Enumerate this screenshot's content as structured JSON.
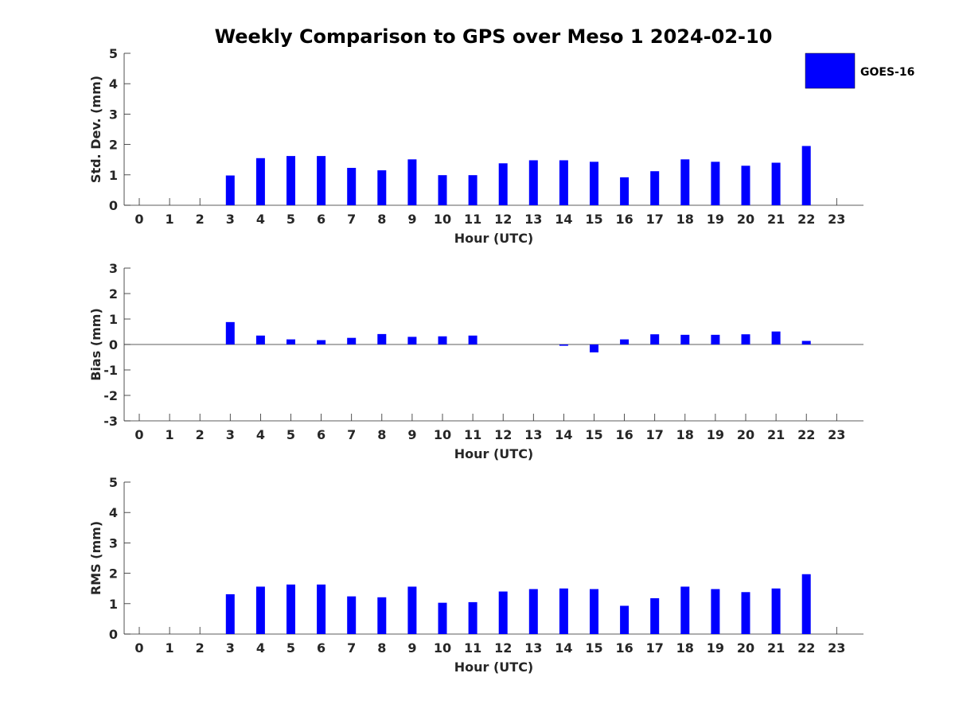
{
  "title": "Weekly Comparison to GPS over Meso 1 2024-02-10",
  "legend": {
    "label": "GOES-16",
    "color": "#0000ff"
  },
  "chart_data": [
    {
      "type": "bar",
      "title": "Weekly Comparison to GPS over Meso 1 2024-02-10",
      "xlabel": "Hour (UTC)",
      "ylabel": "Std. Dev. (mm)",
      "categories": [
        "0",
        "1",
        "2",
        "3",
        "4",
        "5",
        "6",
        "7",
        "8",
        "9",
        "10",
        "11",
        "12",
        "13",
        "14",
        "15",
        "16",
        "17",
        "18",
        "19",
        "20",
        "21",
        "22",
        "23"
      ],
      "ylim": [
        0,
        5
      ],
      "yticks": [
        0,
        1,
        2,
        3,
        4,
        5
      ],
      "series": [
        {
          "name": "GOES-16",
          "values": [
            null,
            null,
            null,
            0.98,
            1.55,
            1.62,
            1.62,
            1.23,
            1.15,
            1.51,
            0.99,
            0.99,
            1.38,
            1.48,
            1.48,
            1.43,
            0.92,
            1.12,
            1.51,
            1.43,
            1.3,
            1.4,
            1.95,
            null
          ]
        }
      ]
    },
    {
      "type": "bar",
      "xlabel": "Hour (UTC)",
      "ylabel": "Bias (mm)",
      "categories": [
        "0",
        "1",
        "2",
        "3",
        "4",
        "5",
        "6",
        "7",
        "8",
        "9",
        "10",
        "11",
        "12",
        "13",
        "14",
        "15",
        "16",
        "17",
        "18",
        "19",
        "20",
        "21",
        "22",
        "23"
      ],
      "ylim": [
        -3,
        3
      ],
      "yticks": [
        -3,
        -2,
        -1,
        0,
        1,
        2,
        3
      ],
      "zero_line": true,
      "series": [
        {
          "name": "GOES-16",
          "values": [
            null,
            null,
            null,
            0.88,
            0.35,
            0.2,
            0.17,
            0.26,
            0.41,
            0.3,
            0.32,
            0.35,
            0.0,
            0.0,
            -0.05,
            -0.31,
            0.2,
            0.4,
            0.38,
            0.38,
            0.4,
            0.51,
            0.14,
            null
          ]
        }
      ]
    },
    {
      "type": "bar",
      "xlabel": "Hour (UTC)",
      "ylabel": "RMS (mm)",
      "categories": [
        "0",
        "1",
        "2",
        "3",
        "4",
        "5",
        "6",
        "7",
        "8",
        "9",
        "10",
        "11",
        "12",
        "13",
        "14",
        "15",
        "16",
        "17",
        "18",
        "19",
        "20",
        "21",
        "22",
        "23"
      ],
      "ylim": [
        0,
        5
      ],
      "yticks": [
        0,
        1,
        2,
        3,
        4,
        5
      ],
      "series": [
        {
          "name": "GOES-16",
          "values": [
            null,
            null,
            null,
            1.31,
            1.56,
            1.63,
            1.63,
            1.24,
            1.21,
            1.56,
            1.03,
            1.05,
            1.4,
            1.48,
            1.5,
            1.48,
            0.93,
            1.18,
            1.56,
            1.48,
            1.38,
            1.5,
            1.97,
            null
          ]
        }
      ]
    }
  ]
}
